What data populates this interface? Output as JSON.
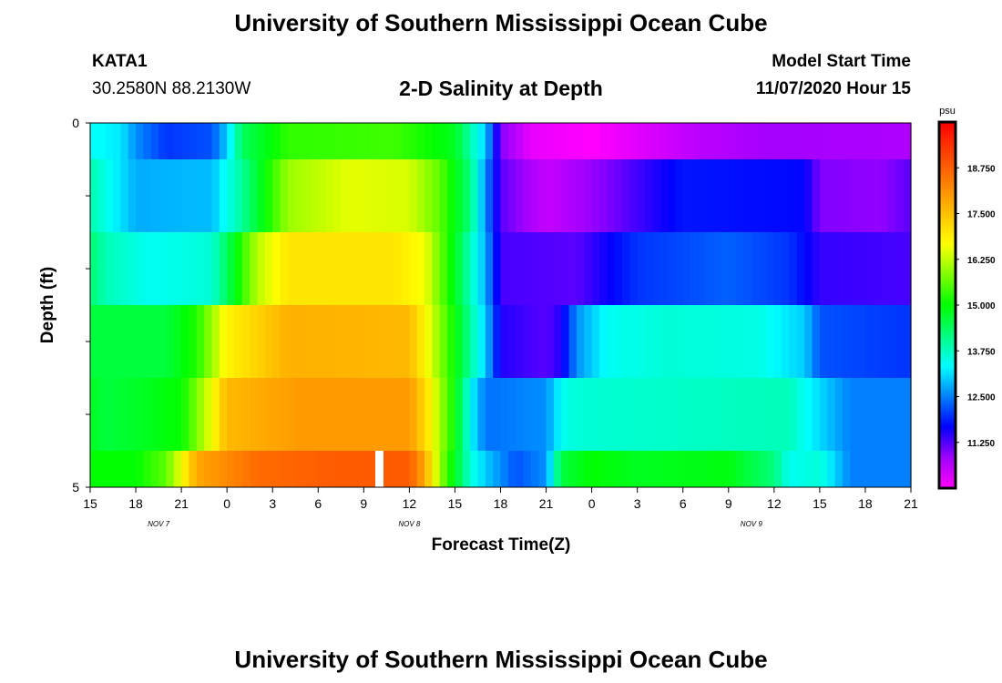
{
  "header": {
    "title": "University of Southern Mississippi Ocean Cube",
    "station": "KATA1",
    "coords": "30.2580N 88.2130W",
    "subtitle": "2-D Salinity at Depth",
    "model_start_label": "Model Start Time",
    "model_start_value": "11/07/2020 Hour 15"
  },
  "footer": {
    "title": "University of Southern Mississippi Ocean Cube"
  },
  "chart_data": {
    "type": "heatmap",
    "xlabel": "Forecast Time(Z)",
    "ylabel": "Depth (ft)",
    "ylim": [
      0,
      5
    ],
    "y_ticks": [
      0,
      1,
      2,
      3,
      4,
      5
    ],
    "y_tick_labels": [
      "0",
      "",
      "",
      "",
      "",
      "5"
    ],
    "x_tick_labels": [
      "15",
      "18",
      "21",
      "0",
      "3",
      "6",
      "9",
      "12",
      "15",
      "18",
      "21",
      "0",
      "3",
      "6",
      "9",
      "12",
      "15",
      "18",
      "21"
    ],
    "date_labels": [
      {
        "text": "NOV 7",
        "tick_index": 1.5
      },
      {
        "text": "NOV 8",
        "tick_index": 7
      },
      {
        "text": "NOV 9",
        "tick_index": 14.5
      }
    ],
    "forecast_hours_start": 15,
    "forecast_hours_end": 69,
    "colorbar": {
      "unit": "psu",
      "min": 10.0,
      "max": 20.0,
      "tick_values": [
        11.25,
        12.5,
        13.75,
        15.0,
        16.25,
        17.5,
        18.75
      ],
      "tick_labels": [
        "11.250",
        "12.500",
        "13.750",
        "15.000",
        "16.250",
        "17.500",
        "18.750"
      ],
      "colors": [
        "#ff00ff",
        "#a000ff",
        "#0000ff",
        "#0080ff",
        "#00ffff",
        "#00ff80",
        "#00ff00",
        "#80ff00",
        "#ffff00",
        "#ffc000",
        "#ff8000",
        "#ff4000",
        "#ff0000"
      ]
    },
    "depth_layers": [
      {
        "depth_range": [
          0.0,
          0.5
        ],
        "keys": [
          [
            0,
            13.4
          ],
          [
            2,
            13.2
          ],
          [
            3,
            12.6
          ],
          [
            5,
            12.0
          ],
          [
            8,
            12.2
          ],
          [
            9,
            13.0
          ],
          [
            10,
            14.4
          ],
          [
            13,
            15.3
          ],
          [
            20,
            15.4
          ],
          [
            24,
            14.8
          ],
          [
            26,
            13.0
          ],
          [
            27,
            11.0
          ],
          [
            29,
            10.2
          ],
          [
            33,
            10.0
          ],
          [
            40,
            10.6
          ],
          [
            45,
            10.8
          ],
          [
            54,
            10.7
          ]
        ]
      },
      {
        "depth_range": [
          0.5,
          1.5
        ],
        "keys": [
          [
            0,
            13.9
          ],
          [
            1,
            13.5
          ],
          [
            3,
            12.8
          ],
          [
            8,
            12.9
          ],
          [
            10,
            14.0
          ],
          [
            13,
            16.0
          ],
          [
            17,
            16.5
          ],
          [
            21,
            16.4
          ],
          [
            23,
            15.6
          ],
          [
            25,
            14.2
          ],
          [
            26,
            12.6
          ],
          [
            27,
            11.2
          ],
          [
            30,
            10.5
          ],
          [
            34,
            11.0
          ],
          [
            39,
            11.8
          ],
          [
            47,
            11.7
          ],
          [
            48,
            11.0
          ],
          [
            52,
            10.9
          ],
          [
            54,
            11.2
          ]
        ]
      },
      {
        "depth_range": [
          1.5,
          2.5
        ],
        "keys": [
          [
            0,
            14.3
          ],
          [
            1,
            13.8
          ],
          [
            4,
            13.4
          ],
          [
            8,
            13.6
          ],
          [
            9,
            14.4
          ],
          [
            11,
            16.2
          ],
          [
            13,
            17.0
          ],
          [
            20,
            17.0
          ],
          [
            22,
            16.6
          ],
          [
            24,
            14.8
          ],
          [
            26,
            12.8
          ],
          [
            27,
            11.3
          ],
          [
            32,
            11.2
          ],
          [
            36,
            12.0
          ],
          [
            42,
            12.3
          ],
          [
            46,
            12.0
          ],
          [
            48,
            11.4
          ],
          [
            54,
            11.3
          ]
        ]
      },
      {
        "depth_range": [
          2.5,
          3.5
        ],
        "keys": [
          [
            0,
            14.6
          ],
          [
            2,
            14.6
          ],
          [
            5,
            14.6
          ],
          [
            7,
            15.2
          ],
          [
            9,
            16.8
          ],
          [
            13,
            17.7
          ],
          [
            21,
            17.6
          ],
          [
            22,
            16.8
          ],
          [
            24,
            15.0
          ],
          [
            26,
            13.0
          ],
          [
            27,
            11.5
          ],
          [
            30,
            11.2
          ],
          [
            31,
            11.5
          ],
          [
            32,
            12.6
          ],
          [
            34,
            13.4
          ],
          [
            38,
            13.6
          ],
          [
            44,
            13.5
          ],
          [
            47,
            13.0
          ],
          [
            48,
            12.2
          ],
          [
            54,
            12.0
          ]
        ]
      },
      {
        "depth_range": [
          3.5,
          4.5
        ],
        "keys": [
          [
            0,
            14.8
          ],
          [
            1,
            14.6
          ],
          [
            6,
            15.0
          ],
          [
            7,
            15.8
          ],
          [
            8,
            16.6
          ],
          [
            9,
            17.6
          ],
          [
            14,
            18.0
          ],
          [
            21,
            18.0
          ],
          [
            22,
            17.2
          ],
          [
            24,
            15.0
          ],
          [
            25,
            13.4
          ],
          [
            26,
            12.4
          ],
          [
            30,
            12.6
          ],
          [
            31,
            13.4
          ],
          [
            32,
            13.6
          ],
          [
            46,
            13.8
          ],
          [
            47,
            13.4
          ],
          [
            50,
            12.5
          ],
          [
            54,
            12.5
          ]
        ]
      },
      {
        "depth_range": [
          4.5,
          5.0
        ],
        "keys": [
          [
            0,
            15.0
          ],
          [
            3,
            15.0
          ],
          [
            5,
            15.6
          ],
          [
            6,
            16.6
          ],
          [
            7,
            17.8
          ],
          [
            11,
            18.6
          ],
          [
            16,
            18.8
          ],
          [
            21,
            18.8
          ],
          [
            22,
            17.8
          ],
          [
            23,
            16.0
          ],
          [
            24,
            14.8
          ],
          [
            25,
            13.6
          ],
          [
            26,
            13.0
          ],
          [
            28,
            12.2
          ],
          [
            30,
            12.6
          ],
          [
            31,
            14.6
          ],
          [
            33,
            15.0
          ],
          [
            36,
            14.8
          ],
          [
            42,
            14.9
          ],
          [
            45,
            14.2
          ],
          [
            46,
            13.4
          ],
          [
            48,
            13.6
          ],
          [
            50,
            12.5
          ],
          [
            54,
            12.5
          ]
        ]
      }
    ]
  }
}
